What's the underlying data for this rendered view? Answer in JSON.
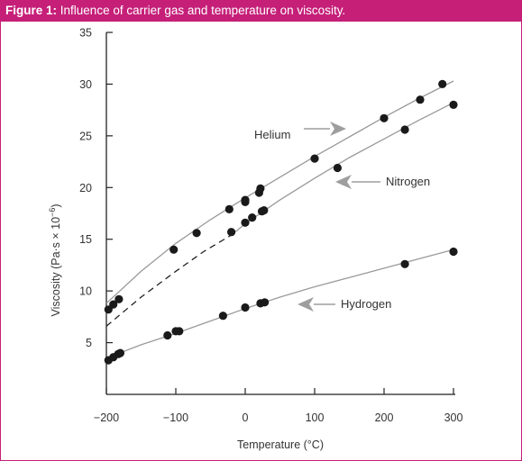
{
  "figure": {
    "label": "Figure 1:",
    "caption": "Influence of carrier gas and temperature on viscosity."
  },
  "colors": {
    "accent": "#c51f78",
    "marker": "#1a1a1a",
    "line": "#9a9a9a",
    "arrow": "#9e9e9e"
  },
  "chart_data": {
    "type": "scatter",
    "xlabel": "Temperature (°C)",
    "ylabel_main": "Viscosity (Pa·s × 10",
    "ylabel_exp": "−6",
    "ylabel_close": ")",
    "xlim": [
      -200,
      300
    ],
    "ylim": [
      0,
      35
    ],
    "xticks": [
      -200,
      -100,
      0,
      100,
      200,
      300
    ],
    "xtick_labels": [
      "−200",
      "−100",
      "0",
      "100",
      "200",
      "300"
    ],
    "yticks": [
      5,
      10,
      15,
      20,
      25,
      30,
      35
    ],
    "ytick_labels": [
      "5",
      "10",
      "15",
      "20",
      "25",
      "30",
      "35"
    ],
    "grid": false,
    "series": [
      {
        "name": "Helium",
        "points": [
          [
            -197,
            8.2
          ],
          [
            -190,
            8.7
          ],
          [
            -182,
            9.2
          ],
          [
            -103,
            14.0
          ],
          [
            -70,
            15.6
          ],
          [
            -23,
            17.9
          ],
          [
            0,
            18.8
          ],
          [
            0,
            18.6
          ],
          [
            20,
            19.5
          ],
          [
            22,
            19.9
          ],
          [
            100,
            22.8
          ],
          [
            200,
            26.7
          ],
          [
            252,
            28.5
          ],
          [
            284,
            30.0
          ]
        ],
        "curve": [
          [
            -200,
            8.8
          ],
          [
            -150,
            11.9
          ],
          [
            -100,
            14.6
          ],
          [
            -50,
            16.9
          ],
          [
            0,
            19.0
          ],
          [
            50,
            21.0
          ],
          [
            100,
            23.0
          ],
          [
            150,
            24.9
          ],
          [
            200,
            26.8
          ],
          [
            250,
            28.6
          ],
          [
            300,
            30.3
          ]
        ],
        "dashed_curve": []
      },
      {
        "name": "Nitrogen",
        "points": [
          [
            -20,
            15.7
          ],
          [
            0,
            16.6
          ],
          [
            10,
            17.1
          ],
          [
            24,
            17.7
          ],
          [
            27,
            17.8
          ],
          [
            133,
            21.9
          ],
          [
            230,
            25.6
          ],
          [
            300,
            28.0
          ]
        ],
        "curve": [
          [
            -20,
            15.4
          ],
          [
            0,
            16.5
          ],
          [
            50,
            18.8
          ],
          [
            100,
            20.9
          ],
          [
            150,
            22.9
          ],
          [
            200,
            24.7
          ],
          [
            250,
            26.5
          ],
          [
            300,
            28.2
          ]
        ],
        "dashed_curve": [
          [
            -200,
            6.6
          ],
          [
            -150,
            9.4
          ],
          [
            -100,
            11.9
          ],
          [
            -60,
            13.8
          ],
          [
            -20,
            15.4
          ]
        ]
      },
      {
        "name": "Hydrogen",
        "points": [
          [
            -197,
            3.3
          ],
          [
            -190,
            3.6
          ],
          [
            -183,
            3.9
          ],
          [
            -180,
            4.0
          ],
          [
            -112,
            5.7
          ],
          [
            -100,
            6.1
          ],
          [
            -95,
            6.1
          ],
          [
            -32,
            7.6
          ],
          [
            0,
            8.4
          ],
          [
            22,
            8.8
          ],
          [
            28,
            8.9
          ],
          [
            230,
            12.6
          ],
          [
            300,
            13.8
          ]
        ],
        "curve": [
          [
            -200,
            3.5
          ],
          [
            -150,
            4.8
          ],
          [
            -100,
            5.9
          ],
          [
            -50,
            7.1
          ],
          [
            0,
            8.3
          ],
          [
            50,
            9.4
          ],
          [
            100,
            10.4
          ],
          [
            150,
            11.3
          ],
          [
            200,
            12.2
          ],
          [
            250,
            13.1
          ],
          [
            300,
            14.0
          ]
        ],
        "dashed_curve": []
      }
    ]
  }
}
